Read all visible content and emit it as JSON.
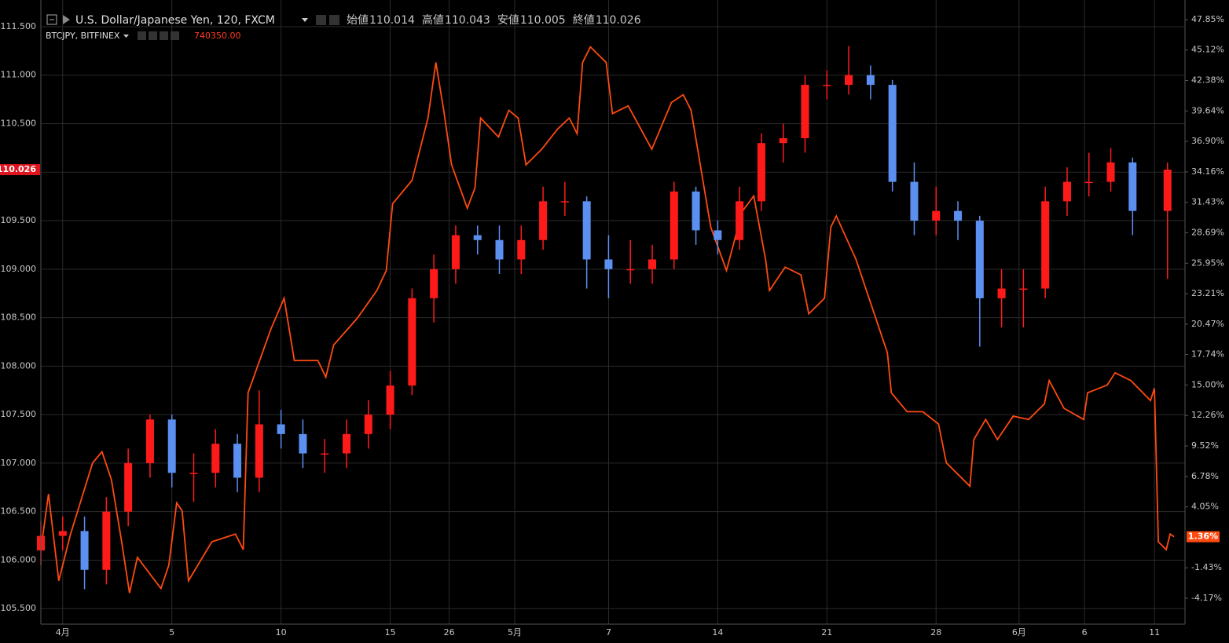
{
  "chart_data": {
    "type": "candlestick",
    "legend": {
      "labels": [
        "始値",
        "高値",
        "安値",
        "終値"
      ],
      "values": [
        110.014,
        110.043,
        110.005,
        110.026
      ]
    },
    "compare_price": "740350.00",
    "last_value_label": "1.36%",
    "grid": true,
    "xlim": [
      -1.0,
      51.4
    ],
    "ylim": [
      105.34,
      111.71
    ],
    "y2lim": [
      -6.5,
      49.05
    ],
    "xticks": [
      {
        "value": 0,
        "label": "4月"
      },
      5,
      10,
      15,
      {
        "value": 17.7,
        "label": "26"
      },
      {
        "value": 20.7,
        "label": "5月"
      },
      {
        "value": 25,
        "label": "7"
      },
      {
        "value": 30,
        "label": "14"
      },
      {
        "value": 35,
        "label": "21"
      },
      {
        "value": 40,
        "label": "28"
      },
      {
        "value": 43.8,
        "label": "6月"
      },
      {
        "value": 46.8,
        "label": "6"
      },
      {
        "value": 50,
        "label": "11"
      }
    ],
    "yticks": [
      {
        "value": 105.5,
        "label": "105.500"
      },
      {
        "value": 106,
        "label": "106.000"
      },
      {
        "value": 106.5,
        "label": "106.500"
      },
      {
        "value": 107,
        "label": "107.000"
      },
      {
        "value": 107.5,
        "label": "107.500"
      },
      {
        "value": 108,
        "label": "108.000"
      },
      {
        "value": 108.5,
        "label": "108.500"
      },
      {
        "value": 109,
        "label": "109.000"
      },
      {
        "value": 109.5,
        "label": "109.500"
      },
      {
        "value": 110,
        "label": "110.000"
      },
      {
        "value": 110.5,
        "label": "110.500"
      },
      {
        "value": 111,
        "label": "111.000"
      },
      {
        "value": 111.5,
        "label": "111.500"
      }
    ],
    "y2ticks": [
      {
        "value": -4.17,
        "label": "-4.17%"
      },
      {
        "value": -1.43,
        "label": "-1.43%"
      },
      {
        "value": 4.05,
        "label": "4.05%"
      },
      {
        "value": 6.78,
        "label": "6.78%"
      },
      {
        "value": 9.52,
        "label": "9.52%"
      },
      {
        "value": 12.26,
        "label": "12.26%"
      },
      {
        "value": 15.0,
        "label": "15.00%"
      },
      {
        "value": 17.74,
        "label": "17.74%"
      },
      {
        "value": 20.47,
        "label": "20.47%"
      },
      {
        "value": 23.21,
        "label": "23.21%"
      },
      {
        "value": 25.95,
        "label": "25.95%"
      },
      {
        "value": 28.69,
        "label": "28.69%"
      },
      {
        "value": 31.43,
        "label": "31.43%"
      },
      {
        "value": 34.16,
        "label": "34.16%"
      },
      {
        "value": 36.9,
        "label": "36.90%"
      },
      {
        "value": 39.64,
        "label": "39.64%"
      },
      {
        "value": 42.38,
        "label": "42.38%"
      },
      {
        "value": 45.12,
        "label": "45.12%"
      },
      {
        "value": 47.85,
        "label": "47.85%"
      }
    ],
    "series": [
      {
        "name": "U.S. Dollar/Japanese Yen, 120, FXCM",
        "up_color": "#ff1a1a",
        "down_color": "#5b8ff0",
        "x": [
          -1,
          0,
          1,
          2,
          3,
          4,
          5,
          6,
          7,
          8,
          9,
          10,
          11,
          12,
          13,
          14,
          15,
          16,
          17,
          18,
          19,
          20,
          21,
          22,
          23,
          24,
          25,
          26,
          27,
          28,
          29,
          30,
          31,
          32,
          33,
          34,
          35,
          36,
          37,
          38,
          39,
          40,
          41,
          42,
          43,
          44,
          45,
          46,
          47,
          48,
          49,
          50.6
        ],
        "open": [
          106.1,
          106.25,
          106.3,
          105.9,
          106.5,
          107.0,
          107.45,
          106.9,
          106.9,
          107.2,
          106.85,
          107.4,
          107.3,
          107.1,
          107.1,
          107.3,
          107.5,
          107.8,
          108.7,
          109.0,
          109.35,
          109.3,
          109.1,
          109.3,
          109.7,
          109.7,
          109.1,
          109.0,
          109.0,
          109.1,
          109.8,
          109.4,
          109.3,
          109.7,
          110.3,
          110.35,
          110.9,
          110.9,
          111.0,
          110.9,
          109.9,
          109.5,
          109.6,
          109.5,
          108.7,
          108.8,
          108.8,
          109.7,
          109.9,
          109.9,
          110.1,
          109.6
        ],
        "high": [
          106.4,
          106.45,
          106.45,
          106.65,
          107.15,
          107.5,
          107.5,
          107.1,
          107.35,
          107.3,
          107.75,
          107.55,
          107.45,
          107.25,
          107.45,
          107.65,
          107.95,
          108.8,
          109.15,
          109.45,
          109.45,
          109.45,
          109.45,
          109.85,
          109.9,
          109.75,
          109.35,
          109.3,
          109.25,
          109.9,
          109.85,
          109.5,
          109.85,
          110.4,
          110.5,
          111.0,
          111.05,
          111.3,
          111.1,
          110.95,
          110.1,
          109.85,
          109.7,
          109.55,
          109.0,
          109.0,
          109.85,
          110.05,
          110.2,
          110.25,
          110.15,
          110.1
        ],
        "low": [
          105.95,
          106.1,
          105.7,
          105.75,
          106.35,
          106.85,
          106.75,
          106.6,
          106.75,
          106.7,
          106.7,
          107.15,
          106.95,
          106.9,
          106.95,
          107.15,
          107.35,
          107.7,
          108.45,
          108.85,
          109.15,
          108.95,
          108.95,
          109.2,
          109.55,
          108.8,
          108.7,
          108.85,
          108.85,
          109.0,
          109.25,
          109.15,
          109.2,
          109.6,
          110.1,
          110.2,
          110.75,
          110.8,
          110.75,
          109.8,
          109.35,
          109.35,
          109.3,
          108.2,
          108.4,
          108.4,
          108.7,
          109.55,
          109.75,
          109.8,
          109.35,
          108.9
        ],
        "close": [
          106.25,
          106.3,
          105.9,
          106.5,
          107.0,
          107.45,
          106.9,
          106.9,
          107.2,
          106.85,
          107.4,
          107.3,
          107.1,
          107.1,
          107.3,
          107.5,
          107.8,
          108.7,
          109.0,
          109.35,
          109.3,
          109.1,
          109.3,
          109.7,
          109.7,
          109.1,
          109.0,
          109.0,
          109.1,
          109.8,
          109.4,
          109.3,
          109.7,
          110.3,
          110.35,
          110.9,
          110.9,
          111.0,
          110.9,
          109.9,
          109.5,
          109.6,
          109.5,
          108.7,
          108.8,
          108.8,
          109.7,
          109.9,
          109.9,
          110.1,
          109.6,
          110.026
        ]
      },
      {
        "name": "BTCJPY, BITFINEX",
        "axis": "y2",
        "color": "#ff4a10",
        "x": [
          -1.0,
          -0.65,
          -0.18,
          0.36,
          1.37,
          1.8,
          2.23,
          2.7,
          3.06,
          3.42,
          4.5,
          4.86,
          5.22,
          5.47,
          5.76,
          6.83,
          7.91,
          8.27,
          8.49,
          9.53,
          10.14,
          10.61,
          11.69,
          12.05,
          12.41,
          13.49,
          14.39,
          14.82,
          15.11,
          16.0,
          16.73,
          17.09,
          17.45,
          17.81,
          18.53,
          18.88,
          19.14,
          19.96,
          20.43,
          20.86,
          21.22,
          21.94,
          22.66,
          23.2,
          23.56,
          23.81,
          24.17,
          24.89,
          25.18,
          25.9,
          26.98,
          27.88,
          28.42,
          28.78,
          29.32,
          29.68,
          30.4,
          31.12,
          31.65,
          32.19,
          32.37,
          33.09,
          33.81,
          34.17,
          34.89,
          35.18,
          35.43,
          36.33,
          37.05,
          37.77,
          37.95,
          38.67,
          39.39,
          40.11,
          40.47,
          41.55,
          41.73,
          42.27,
          42.81,
          43.53,
          44.24,
          44.96,
          45.18,
          45.86,
          46.76,
          46.94,
          47.84,
          48.2,
          48.92,
          49.82,
          50.0,
          50.18,
          50.54,
          50.72,
          50.9
        ],
        "values": [
          0.2,
          5.2,
          -2.6,
          1.6,
          8.0,
          9.0,
          6.5,
          0.9,
          -3.7,
          -0.5,
          -3.3,
          -1.2,
          4.4,
          3.7,
          -2.6,
          0.9,
          1.6,
          0.2,
          14.3,
          20.0,
          22.8,
          17.2,
          17.2,
          15.7,
          18.6,
          21.0,
          23.5,
          25.3,
          31.3,
          33.4,
          39.0,
          44.0,
          39.7,
          34.8,
          30.9,
          32.7,
          39.0,
          37.3,
          39.7,
          39.0,
          34.8,
          36.2,
          38.0,
          39.0,
          37.6,
          44.0,
          45.4,
          44.0,
          39.4,
          40.1,
          36.2,
          40.4,
          41.1,
          39.7,
          33.4,
          29.2,
          25.3,
          30.6,
          32.0,
          26.3,
          23.5,
          25.6,
          24.9,
          21.4,
          22.8,
          29.2,
          30.2,
          26.3,
          22.1,
          17.9,
          14.3,
          12.6,
          12.6,
          11.5,
          8.0,
          5.9,
          10.1,
          11.9,
          10.1,
          12.2,
          11.9,
          13.3,
          15.4,
          12.9,
          11.9,
          14.3,
          15.0,
          16.1,
          15.4,
          13.6,
          14.7,
          0.9,
          0.2,
          1.6,
          1.36
        ]
      }
    ]
  }
}
